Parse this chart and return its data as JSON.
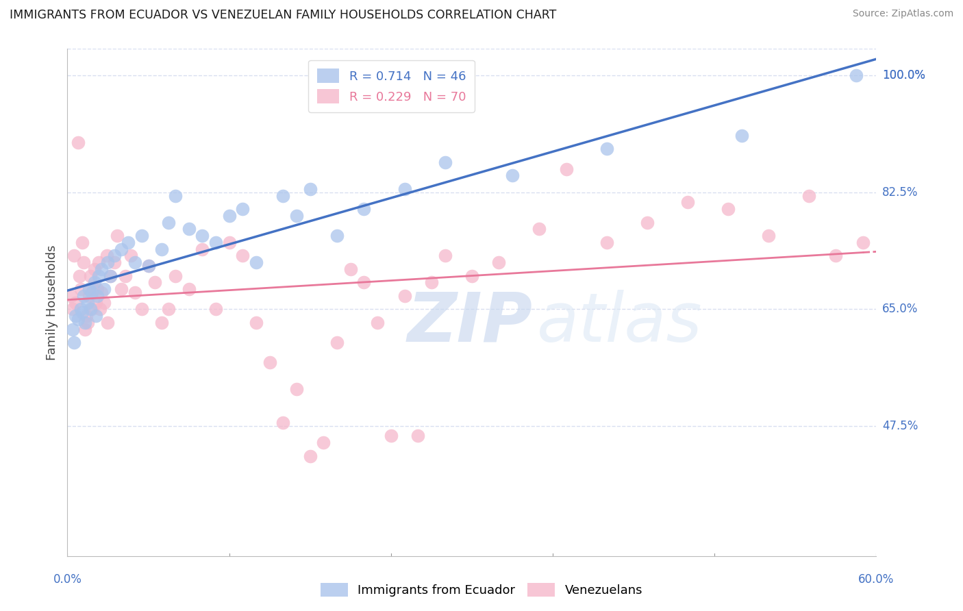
{
  "title": "IMMIGRANTS FROM ECUADOR VS VENEZUELAN FAMILY HOUSEHOLDS CORRELATION CHART",
  "source": "Source: ZipAtlas.com",
  "ylabel": "Family Households",
  "xlim": [
    0.0,
    60.0
  ],
  "ylim": [
    28.0,
    104.0
  ],
  "yticks": [
    47.5,
    65.0,
    82.5,
    100.0
  ],
  "ytick_labels": [
    "47.5%",
    "65.0%",
    "82.5%",
    "100.0%"
  ],
  "ecuador_color": "#aac4ec",
  "venezuela_color": "#f5b8cb",
  "ecuador_line_color": "#4472c4",
  "venezuela_line_color": "#e8789a",
  "legend_ecuador_label": "R = 0.714   N = 46",
  "legend_venezuela_label": "R = 0.229   N = 70",
  "legend_bottom_ecuador": "Immigrants from Ecuador",
  "legend_bottom_venezuela": "Venezuelans",
  "watermark_zip": "ZIP",
  "watermark_atlas": "atlas",
  "ecuador_line_x0": 0.0,
  "ecuador_line_y0": 63.5,
  "ecuador_line_x1": 60.0,
  "ecuador_line_y1": 100.0,
  "venezuela_line_x0": 0.0,
  "venezuela_line_y0": 65.5,
  "venezuela_line_x1": 55.0,
  "venezuela_line_y1": 82.5,
  "venezuela_dash_x0": 55.0,
  "venezuela_dash_x1": 60.0,
  "ecuador_points_x": [
    0.4,
    0.5,
    0.6,
    0.8,
    1.0,
    1.1,
    1.2,
    1.3,
    1.5,
    1.6,
    1.7,
    1.8,
    2.0,
    2.1,
    2.2,
    2.3,
    2.5,
    2.7,
    3.0,
    3.2,
    3.5,
    4.0,
    4.5,
    5.0,
    5.5,
    6.0,
    7.0,
    7.5,
    8.0,
    9.0,
    10.0,
    11.0,
    12.0,
    13.0,
    14.0,
    16.0,
    17.0,
    18.0,
    20.0,
    22.0,
    25.0,
    28.0,
    33.0,
    40.0,
    50.0,
    58.5
  ],
  "ecuador_points_y": [
    62.0,
    60.0,
    64.0,
    63.5,
    65.0,
    64.5,
    67.0,
    63.0,
    66.0,
    68.0,
    65.0,
    67.5,
    69.0,
    64.0,
    67.0,
    70.0,
    71.0,
    68.0,
    72.0,
    70.0,
    73.0,
    74.0,
    75.0,
    72.0,
    76.0,
    71.5,
    74.0,
    78.0,
    82.0,
    77.0,
    76.0,
    75.0,
    79.0,
    80.0,
    72.0,
    82.0,
    79.0,
    83.0,
    76.0,
    80.0,
    83.0,
    87.0,
    85.0,
    89.0,
    91.0,
    100.0
  ],
  "venezuela_points_x": [
    0.3,
    0.4,
    0.5,
    0.6,
    0.8,
    0.9,
    1.0,
    1.1,
    1.2,
    1.3,
    1.4,
    1.5,
    1.6,
    1.7,
    1.8,
    1.9,
    2.0,
    2.1,
    2.2,
    2.3,
    2.4,
    2.5,
    2.7,
    2.9,
    3.0,
    3.2,
    3.5,
    3.7,
    4.0,
    4.3,
    4.7,
    5.0,
    5.5,
    6.0,
    6.5,
    7.0,
    7.5,
    8.0,
    9.0,
    10.0,
    11.0,
    12.0,
    13.0,
    14.0,
    15.0,
    16.0,
    17.0,
    18.0,
    19.0,
    20.0,
    21.0,
    22.0,
    23.0,
    24.0,
    25.0,
    26.0,
    27.0,
    28.0,
    30.0,
    32.0,
    35.0,
    37.0,
    40.0,
    43.0,
    46.0,
    49.0,
    52.0,
    55.0,
    57.0,
    59.0
  ],
  "venezuela_points_y": [
    67.0,
    65.0,
    73.0,
    66.0,
    90.0,
    70.0,
    68.0,
    75.0,
    72.0,
    62.0,
    64.0,
    63.0,
    67.0,
    70.0,
    65.0,
    68.0,
    71.0,
    66.0,
    68.0,
    72.0,
    65.0,
    67.5,
    66.0,
    73.0,
    63.0,
    70.0,
    72.0,
    76.0,
    68.0,
    70.0,
    73.0,
    67.5,
    65.0,
    71.5,
    69.0,
    63.0,
    65.0,
    70.0,
    68.0,
    74.0,
    65.0,
    75.0,
    73.0,
    63.0,
    57.0,
    48.0,
    53.0,
    43.0,
    45.0,
    60.0,
    71.0,
    69.0,
    63.0,
    46.0,
    67.0,
    46.0,
    69.0,
    73.0,
    70.0,
    72.0,
    77.0,
    86.0,
    75.0,
    78.0,
    81.0,
    80.0,
    76.0,
    82.0,
    73.0,
    75.0
  ],
  "title_color": "#1a1a1a",
  "source_color": "#888888",
  "tick_color": "#4472c4",
  "grid_color": "#d8dff0",
  "background_color": "#ffffff"
}
